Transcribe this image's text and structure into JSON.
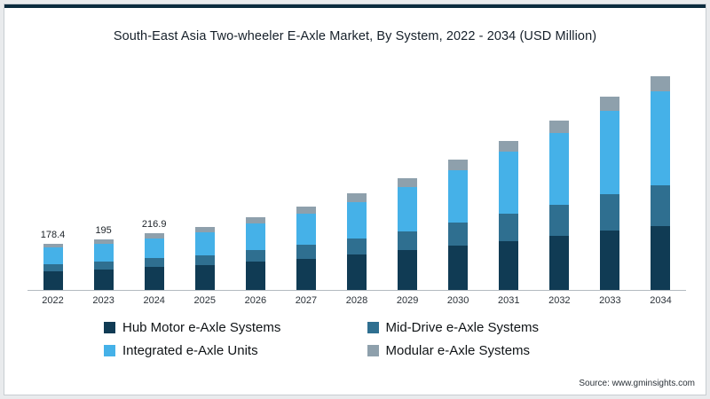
{
  "page": {
    "title": "South-East Asia Two-wheeler E-Axle Market, By System, 2022 - 2034 (USD Million)",
    "source": "Source: www.gminsights.com"
  },
  "colors": {
    "accent_top": "#0c2c3e",
    "axis_line": "#b3bac0"
  },
  "chart_data": {
    "type": "bar",
    "stacked": true,
    "title": "South-East Asia Two-wheeler E-Axle Market, By System, 2022 - 2034 (USD Million)",
    "xlabel": "",
    "ylabel": "USD Million",
    "ylim": [
      0,
      850
    ],
    "grid": false,
    "legend_position": "bottom",
    "categories": [
      "2022",
      "2023",
      "2024",
      "2025",
      "2026",
      "2027",
      "2028",
      "2029",
      "2030",
      "2031",
      "2032",
      "2033",
      "2034"
    ],
    "series": [
      {
        "name": "Hub Motor e-Axle Systems",
        "color": "#103b54",
        "values": [
          73,
          79,
          87,
          95,
          108,
          120,
          135,
          152,
          170,
          188,
          207,
          228,
          245
        ]
      },
      {
        "name": "Mid-Drive e-Axle Systems",
        "color": "#2f6f90",
        "values": [
          27,
          30,
          34,
          38,
          45,
          52,
          62,
          74,
          88,
          103,
          119,
          138,
          155
        ]
      },
      {
        "name": "Integrated e-Axle Units",
        "color": "#45b1e8",
        "values": [
          62,
          68,
          76,
          87,
          102,
          119,
          141,
          168,
          202,
          238,
          276,
          322,
          362
        ]
      },
      {
        "name": "Modular e-Axle Systems",
        "color": "#8ea0ac",
        "values": [
          16.4,
          18,
          19.9,
          22,
          25,
          29,
          32,
          36,
          40,
          44,
          48,
          52,
          56
        ]
      }
    ],
    "totals": [
      178.4,
      195,
      216.9,
      242,
      280,
      320,
      370,
      430,
      500,
      573,
      650,
      740,
      818
    ],
    "data_labels": [
      "178.4",
      "195",
      "216.9",
      "",
      "",
      "",
      "",
      "",
      "",
      "",
      "",
      "",
      ""
    ]
  }
}
